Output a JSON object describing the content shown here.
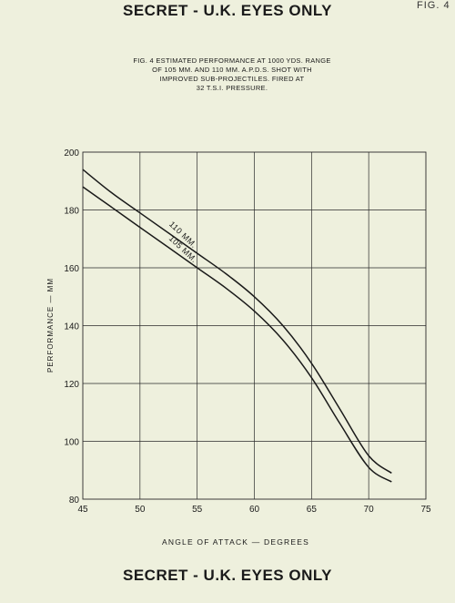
{
  "header": {
    "classification": "SECRET - U.K. EYES ONLY",
    "fig_ref": "FIG. 4"
  },
  "footer": {
    "classification": "SECRET - U.K. EYES ONLY"
  },
  "caption_lines": [
    "FIG. 4  ESTIMATED PERFORMANCE AT 1000 YDS. RANGE",
    "OF 105 MM. AND 110 MM. A.P.D.S. SHOT WITH",
    "IMPROVED SUB-PROJECTILES. FIRED AT",
    "32 T.S.I. PRESSURE."
  ],
  "chart_data": {
    "type": "line",
    "title": "FIG. 4  ESTIMATED PERFORMANCE AT 1000 YDS. RANGE OF 105 MM. AND 110 MM. A.P.D.S. SHOT WITH IMPROVED SUB-PROJECTILES. FIRED AT 32 T.S.I. PRESSURE.",
    "xlabel": "ANGLE OF ATTACK — DEGREES",
    "ylabel": "PERFORMANCE — MM",
    "xlim": [
      45,
      75
    ],
    "ylim": [
      80,
      200
    ],
    "xticks": [
      45,
      50,
      55,
      60,
      65,
      70,
      75
    ],
    "yticks": [
      80,
      100,
      120,
      140,
      160,
      180,
      200
    ],
    "grid": true,
    "series": [
      {
        "name": "110 MM.",
        "x": [
          45,
          47.5,
          50,
          52.5,
          55,
          57.5,
          60,
          62.5,
          65,
          67.5,
          70,
          72
        ],
        "y": [
          194,
          186,
          179,
          172,
          165,
          158,
          150,
          140,
          127,
          111,
          95,
          89
        ]
      },
      {
        "name": "105 MM.",
        "x": [
          45,
          47.5,
          50,
          52.5,
          55,
          57.5,
          60,
          62.5,
          65,
          67.5,
          70,
          72
        ],
        "y": [
          188,
          181,
          174,
          167,
          160,
          153,
          145,
          135,
          122,
          106,
          91,
          86
        ]
      }
    ]
  },
  "colors": {
    "paper": "#eef0dd",
    "ink": "#1a1a1a",
    "grid": "#2a2a2a"
  }
}
